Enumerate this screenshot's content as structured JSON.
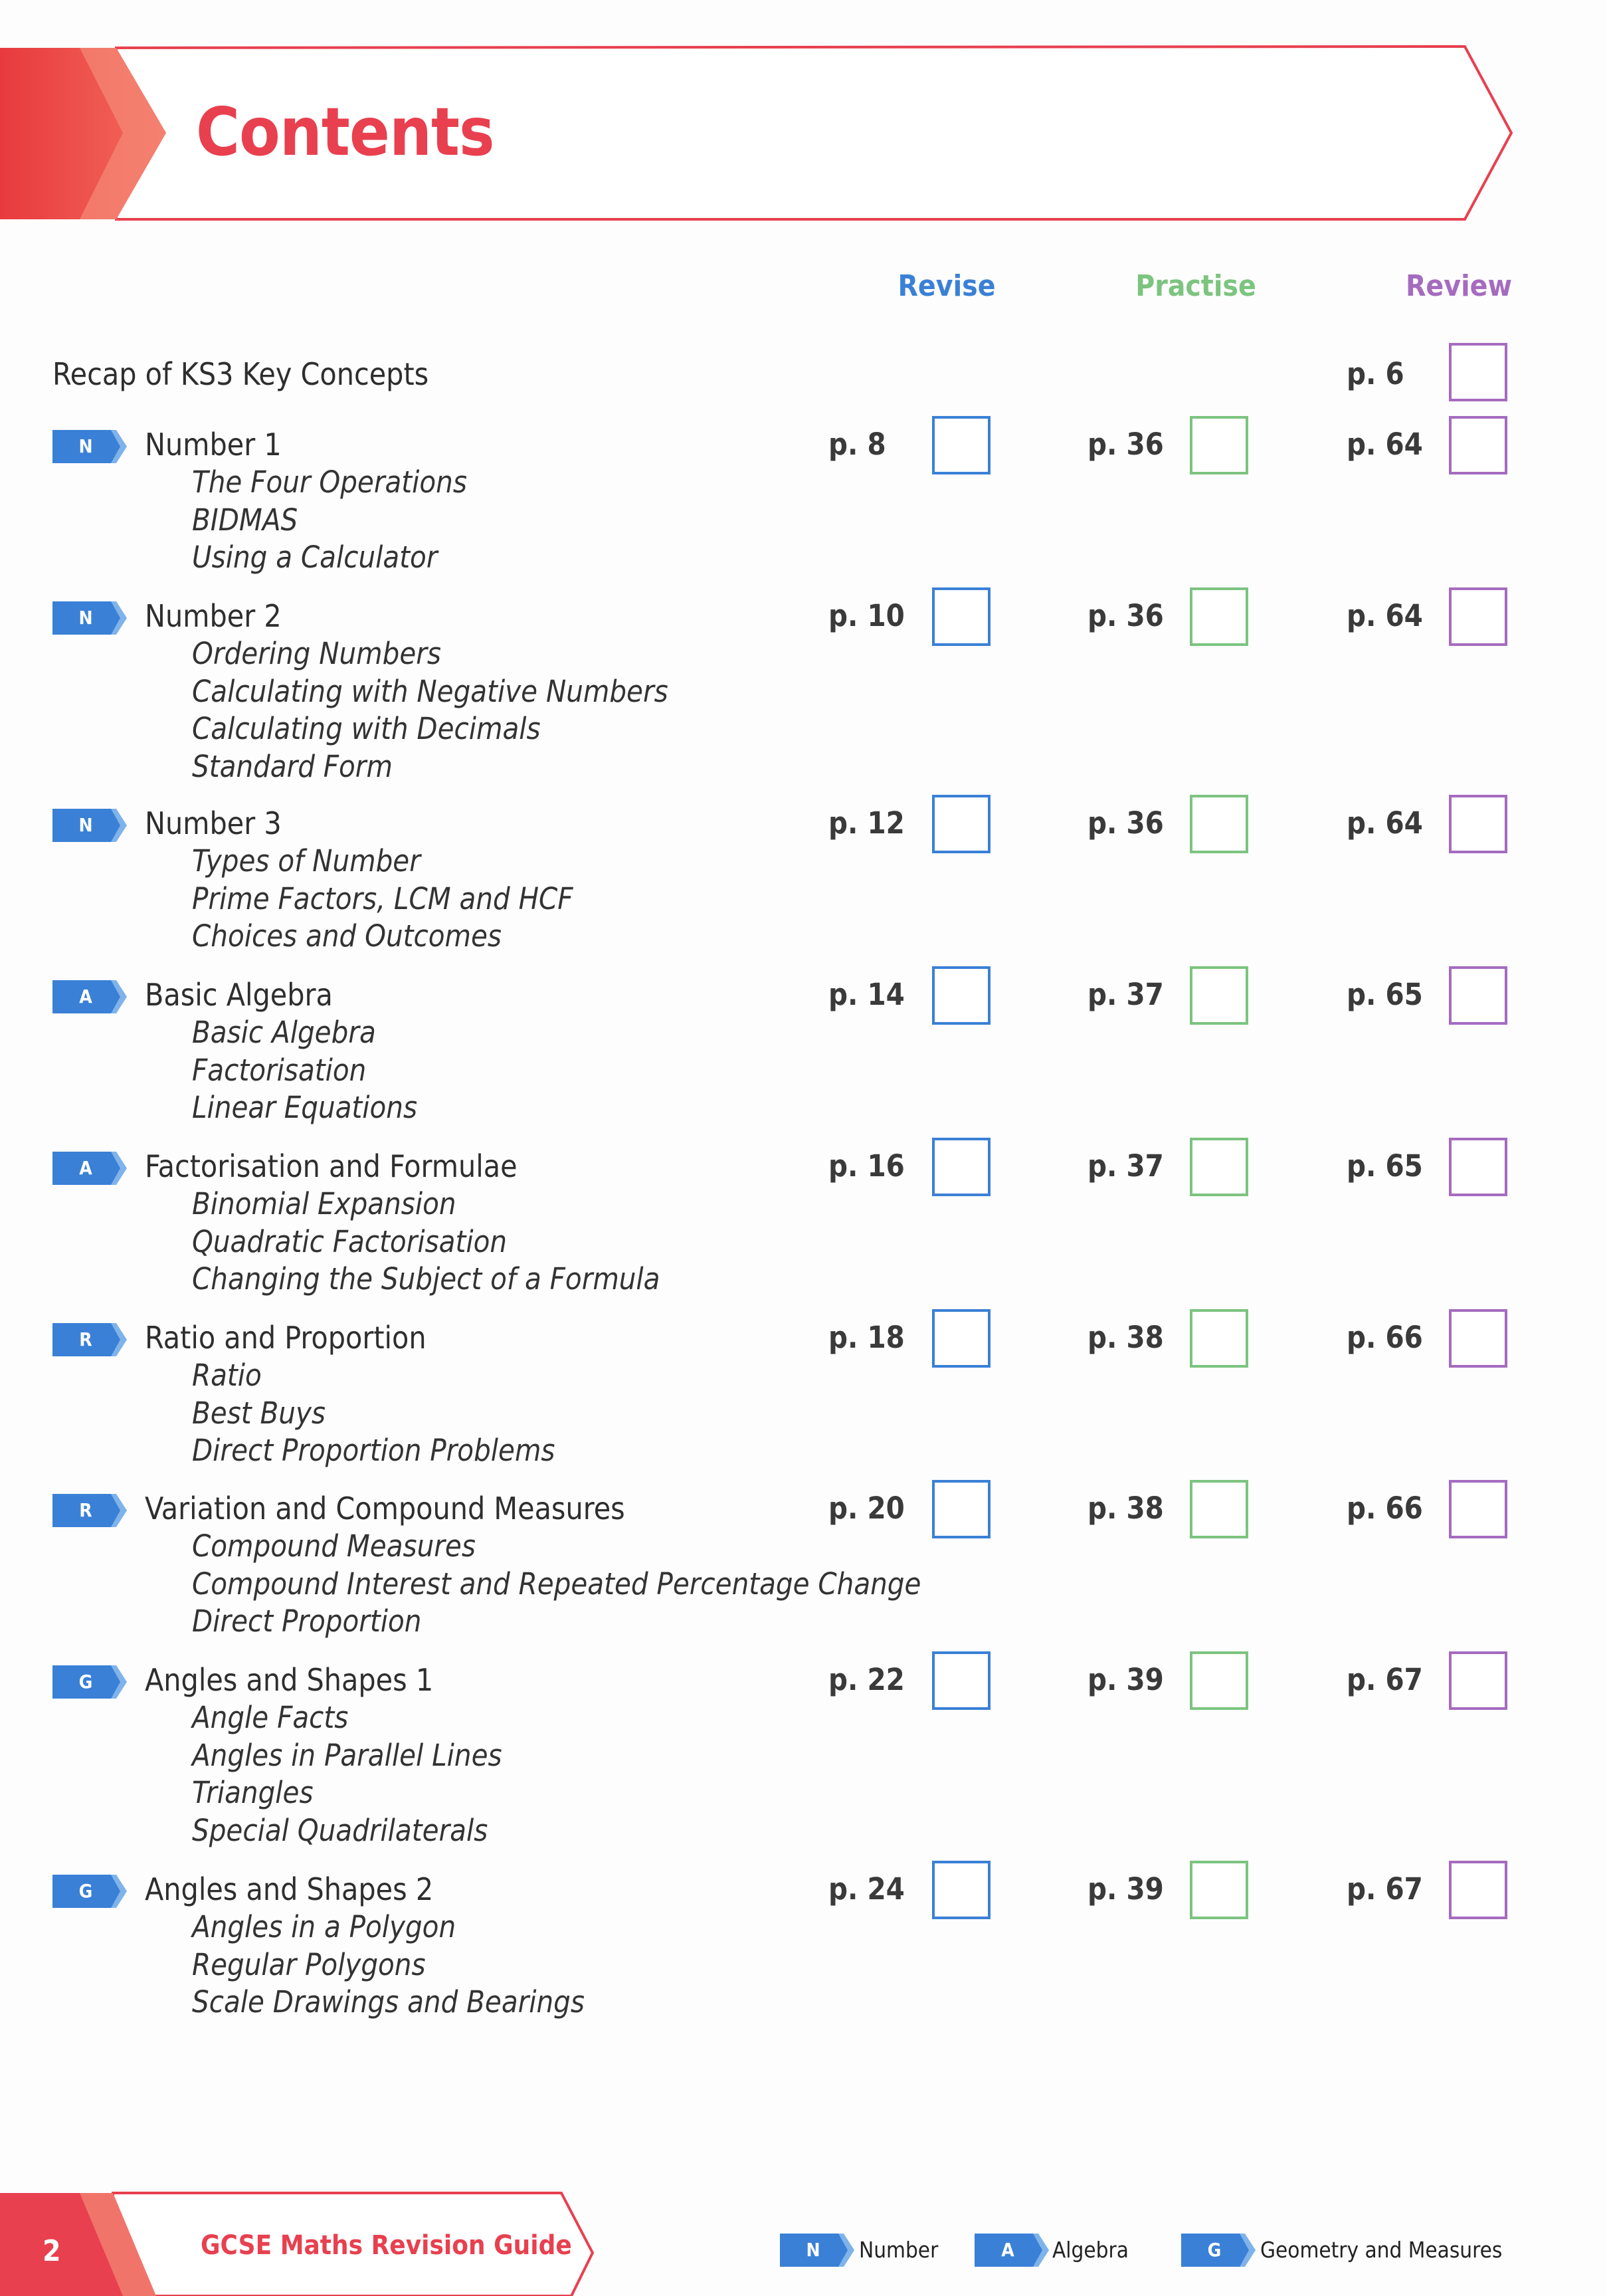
{
  "header": {
    "title": "Contents"
  },
  "columns": {
    "revise": "Revise",
    "practise": "Practise",
    "review": "Review"
  },
  "colors": {
    "red": "#e8404f",
    "revise": "#3a80d6",
    "practise": "#7cc47f",
    "review": "#a56bbf",
    "badge": "#3a80d6"
  },
  "recap": {
    "title": "Recap of KS3 Key Concepts",
    "review_page": "p. 6"
  },
  "sections": [
    {
      "badge": "N",
      "title": "Number 1",
      "topics": [
        "The Four Operations",
        "BIDMAS",
        "Using a Calculator"
      ],
      "revise": "p. 8",
      "practise": "p. 36",
      "review": "p. 64"
    },
    {
      "badge": "N",
      "title": "Number 2",
      "topics": [
        "Ordering Numbers",
        "Calculating with Negative Numbers",
        "Calculating with Decimals",
        "Standard Form"
      ],
      "revise": "p. 10",
      "practise": "p. 36",
      "review": "p. 64"
    },
    {
      "badge": "N",
      "title": "Number 3",
      "topics": [
        "Types of Number",
        "Prime Factors, LCM and HCF",
        "Choices and Outcomes"
      ],
      "revise": "p. 12",
      "practise": "p. 36",
      "review": "p. 64"
    },
    {
      "badge": "A",
      "title": "Basic Algebra",
      "topics": [
        "Basic Algebra",
        "Factorisation",
        "Linear Equations"
      ],
      "revise": "p. 14",
      "practise": "p. 37",
      "review": "p. 65"
    },
    {
      "badge": "A",
      "title": "Factorisation and Formulae",
      "topics": [
        "Binomial Expansion",
        "Quadratic Factorisation",
        "Changing the Subject of a Formula"
      ],
      "revise": "p. 16",
      "practise": "p. 37",
      "review": "p. 65"
    },
    {
      "badge": "R",
      "title": "Ratio and Proportion",
      "topics": [
        "Ratio",
        "Best Buys",
        "Direct Proportion Problems"
      ],
      "revise": "p. 18",
      "practise": "p. 38",
      "review": "p. 66"
    },
    {
      "badge": "R",
      "title": "Variation and Compound Measures",
      "topics": [
        "Compound Measures",
        "Compound Interest and Repeated Percentage Change",
        "Direct Proportion"
      ],
      "revise": "p. 20",
      "practise": "p. 38",
      "review": "p. 66"
    },
    {
      "badge": "G",
      "title": "Angles and Shapes 1",
      "topics": [
        "Angle Facts",
        "Angles in Parallel Lines",
        "Triangles",
        "Special Quadrilaterals"
      ],
      "revise": "p. 22",
      "practise": "p. 39",
      "review": "p. 67"
    },
    {
      "badge": "G",
      "title": "Angles and Shapes 2",
      "topics": [
        "Angles in a Polygon",
        "Regular Polygons",
        "Scale Drawings and Bearings"
      ],
      "revise": "p. 24",
      "practise": "p. 39",
      "review": "p. 67"
    }
  ],
  "footer": {
    "page_number": "2",
    "book_title": "GCSE Maths Revision Guide",
    "legend": [
      {
        "badge": "N",
        "label": "Number"
      },
      {
        "badge": "A",
        "label": "Algebra"
      },
      {
        "badge": "G",
        "label": "Geometry and Measures"
      }
    ]
  }
}
